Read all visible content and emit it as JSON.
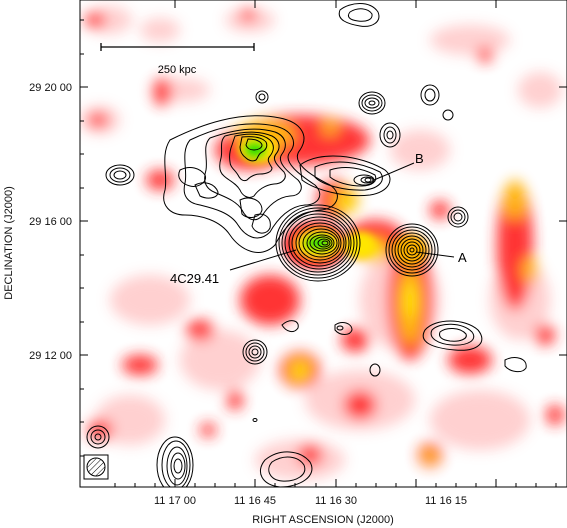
{
  "figure": {
    "scale_bar_label": "250 kpc",
    "x_axis_title": "RIGHT ASCENSION  (J2000)",
    "y_axis_title": "DECLINATION  (J2000)",
    "x_ticks": [
      "11 17 00",
      "11 16 45",
      "11 16 30",
      "11 16 15"
    ],
    "y_ticks": [
      "29 20 00",
      "29 16 00",
      "29 12 00"
    ],
    "labels": {
      "galaxy": "4C29.41",
      "source_a": "A",
      "source_b": "B"
    },
    "colors": {
      "low": "#ff2a2a",
      "mid": "#ffb400",
      "high": "#ffe600",
      "peak": "#35e000",
      "contours": "#000000"
    }
  }
}
